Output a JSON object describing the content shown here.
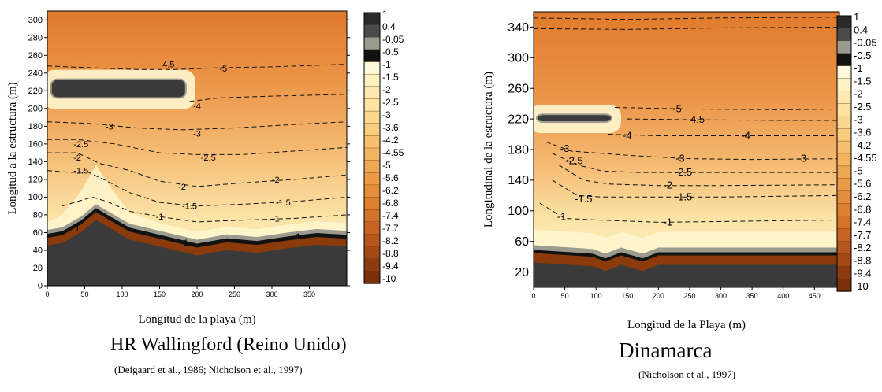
{
  "colors": {
    "sea_dark": "#3a3a3a",
    "gray": "#9a9a8e",
    "black": "#111111",
    "brown": "#8b3a0c",
    "pale": "#fff6cf",
    "cream": "#fbe3a6",
    "light_orange": "#f5b971",
    "orange": "#eb9447",
    "deep_orange": "#e17a2c"
  },
  "chart_data": [
    {
      "type": "heatmap",
      "title": "HR Wallingford (Reino Unido)",
      "subtitle": "(Deigaard et al., 1986; Nicholson et al., 1997)",
      "xlabel": "Longitud de la playa (m)",
      "ylabel": "Longitud a la estructura (m)",
      "xlim": [
        0,
        400
      ],
      "ylim": [
        0,
        310
      ],
      "xticks": [
        "0",
        "50",
        "100",
        "150",
        "200",
        "250",
        "300",
        "350"
      ],
      "yticks": [
        "0",
        "20",
        "40",
        "60",
        "80",
        "100",
        "120",
        "140",
        "160",
        "180",
        "200",
        "220",
        "240",
        "260",
        "280",
        "300"
      ],
      "colorbar_labels": [
        "1",
        "0.4",
        "-0.05",
        "-0.5",
        "-1",
        "-1.5",
        "-2",
        "-2.5",
        "-3",
        "-3.6",
        "-4.2",
        "-4.55",
        "-5",
        "-5.6",
        "-6.2",
        "-6.8",
        "-7.4",
        "-7.7",
        "-8.2",
        "-8.8",
        "-9.4",
        "-10"
      ],
      "breakwater": {
        "x": [
          5,
          185
        ],
        "y": [
          212,
          233
        ]
      },
      "contour_labels": [
        {
          "text": "-4.5",
          "x": 160,
          "y": 250
        },
        {
          "text": "-5",
          "x": 235,
          "y": 245
        },
        {
          "text": "-4",
          "x": 200,
          "y": 203
        },
        {
          "text": "-3",
          "x": 83,
          "y": 180
        },
        {
          "text": "-3",
          "x": 200,
          "y": 172
        },
        {
          "text": "-2.5",
          "x": 45,
          "y": 160
        },
        {
          "text": "-2",
          "x": 40,
          "y": 145
        },
        {
          "text": "-2.5",
          "x": 215,
          "y": 145
        },
        {
          "text": "-1.5",
          "x": 45,
          "y": 130
        },
        {
          "text": "-2",
          "x": 180,
          "y": 112
        },
        {
          "text": "-2",
          "x": 305,
          "y": 120
        },
        {
          "text": "-1.5",
          "x": 190,
          "y": 90
        },
        {
          "text": "-1.5",
          "x": 315,
          "y": 94
        },
        {
          "text": "-1",
          "x": 150,
          "y": 78
        },
        {
          "text": "-1",
          "x": 305,
          "y": 76
        },
        {
          "text": "1",
          "x": 40,
          "y": 65
        },
        {
          "text": "1",
          "x": 185,
          "y": 49
        },
        {
          "text": "1",
          "x": 335,
          "y": 56
        }
      ]
    },
    {
      "type": "heatmap",
      "title": "Dinamarca",
      "subtitle": "(Nicholson et al., 1997)",
      "xlabel": "Longitud de la Playa (m)",
      "ylabel": "Longitudinal de la estructura (m)",
      "xlim": [
        0,
        490
      ],
      "ylim": [
        0,
        360
      ],
      "xticks": [
        "0",
        "50",
        "100",
        "150",
        "200",
        "250",
        "300",
        "350",
        "400",
        "450"
      ],
      "yticks": [
        "20",
        "60",
        "100",
        "140",
        "180",
        "220",
        "260",
        "300",
        "340"
      ],
      "colorbar_labels": [
        "1",
        "0.4",
        "-0.05",
        "-0.5",
        "-1",
        "-1.5",
        "-2",
        "-2.5",
        "-3",
        "-3.6",
        "-4.2",
        "-4.55",
        "-5",
        "-5.6",
        "-6.2",
        "-6.8",
        "-7.4",
        "-7.7",
        "-8.2",
        "-8.8",
        "-9.4",
        "-10"
      ],
      "breakwater": {
        "x": [
          5,
          125
        ],
        "y": [
          216,
          226
        ]
      },
      "contour_labels": [
        {
          "text": "-5",
          "x": 230,
          "y": 233
        },
        {
          "text": "-4.5",
          "x": 260,
          "y": 219
        },
        {
          "text": "-4",
          "x": 150,
          "y": 198
        },
        {
          "text": "-4",
          "x": 340,
          "y": 198
        },
        {
          "text": "-3",
          "x": 50,
          "y": 181
        },
        {
          "text": "-3",
          "x": 235,
          "y": 168
        },
        {
          "text": "-3",
          "x": 430,
          "y": 168
        },
        {
          "text": "-2.5",
          "x": 65,
          "y": 165
        },
        {
          "text": "-2.5",
          "x": 240,
          "y": 150
        },
        {
          "text": "-2",
          "x": 215,
          "y": 133
        },
        {
          "text": "-1.5",
          "x": 80,
          "y": 115
        },
        {
          "text": "-1.5",
          "x": 240,
          "y": 118
        },
        {
          "text": "-1",
          "x": 45,
          "y": 92
        },
        {
          "text": "-1",
          "x": 215,
          "y": 85
        }
      ]
    }
  ]
}
